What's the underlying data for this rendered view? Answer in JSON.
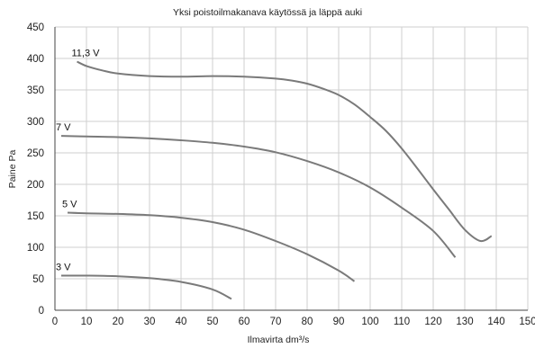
{
  "chart_data": {
    "type": "line",
    "title": "Yksi poistoilmakanava käytössä ja läppä auki",
    "xlabel": "Ilmavirta dm³/s",
    "ylabel": "Paine Pa",
    "xlim": [
      0,
      150
    ],
    "ylim": [
      0,
      450
    ],
    "x_ticks": [
      0,
      10,
      20,
      30,
      40,
      50,
      60,
      70,
      80,
      90,
      100,
      110,
      120,
      130,
      140,
      150
    ],
    "y_ticks": [
      0,
      50,
      100,
      150,
      200,
      250,
      300,
      350,
      400,
      450
    ],
    "grid": true,
    "series": [
      {
        "name": "11,3 V",
        "points": [
          [
            7,
            395
          ],
          [
            10,
            388
          ],
          [
            15,
            381
          ],
          [
            20,
            376
          ],
          [
            30,
            372
          ],
          [
            40,
            371
          ],
          [
            50,
            372
          ],
          [
            60,
            371
          ],
          [
            70,
            368
          ],
          [
            75,
            365
          ],
          [
            80,
            360
          ],
          [
            85,
            352
          ],
          [
            90,
            342
          ],
          [
            95,
            327
          ],
          [
            100,
            307
          ],
          [
            105,
            285
          ],
          [
            110,
            257
          ],
          [
            115,
            225
          ],
          [
            120,
            192
          ],
          [
            125,
            160
          ],
          [
            130,
            128
          ],
          [
            135,
            110
          ],
          [
            138.5,
            118
          ]
        ]
      },
      {
        "name": "7 V",
        "points": [
          [
            2,
            277
          ],
          [
            10,
            276
          ],
          [
            20,
            275
          ],
          [
            30,
            273
          ],
          [
            40,
            270
          ],
          [
            50,
            266
          ],
          [
            60,
            260
          ],
          [
            70,
            251
          ],
          [
            80,
            237
          ],
          [
            90,
            219
          ],
          [
            100,
            195
          ],
          [
            110,
            163
          ],
          [
            120,
            126
          ],
          [
            127,
            84
          ]
        ]
      },
      {
        "name": "5 V",
        "points": [
          [
            4,
            155
          ],
          [
            10,
            154
          ],
          [
            20,
            153
          ],
          [
            30,
            151
          ],
          [
            40,
            147
          ],
          [
            50,
            140
          ],
          [
            60,
            128
          ],
          [
            70,
            110
          ],
          [
            80,
            89
          ],
          [
            90,
            63
          ],
          [
            95,
            46
          ]
        ]
      },
      {
        "name": "3 V",
        "points": [
          [
            2,
            55
          ],
          [
            10,
            55
          ],
          [
            20,
            54
          ],
          [
            30,
            51
          ],
          [
            40,
            45
          ],
          [
            50,
            33
          ],
          [
            56,
            18
          ]
        ]
      }
    ]
  },
  "colors": {
    "curve": "#7a7a7a",
    "grid": "#cfcfcf",
    "axis": "#444444",
    "text": "#222222"
  }
}
